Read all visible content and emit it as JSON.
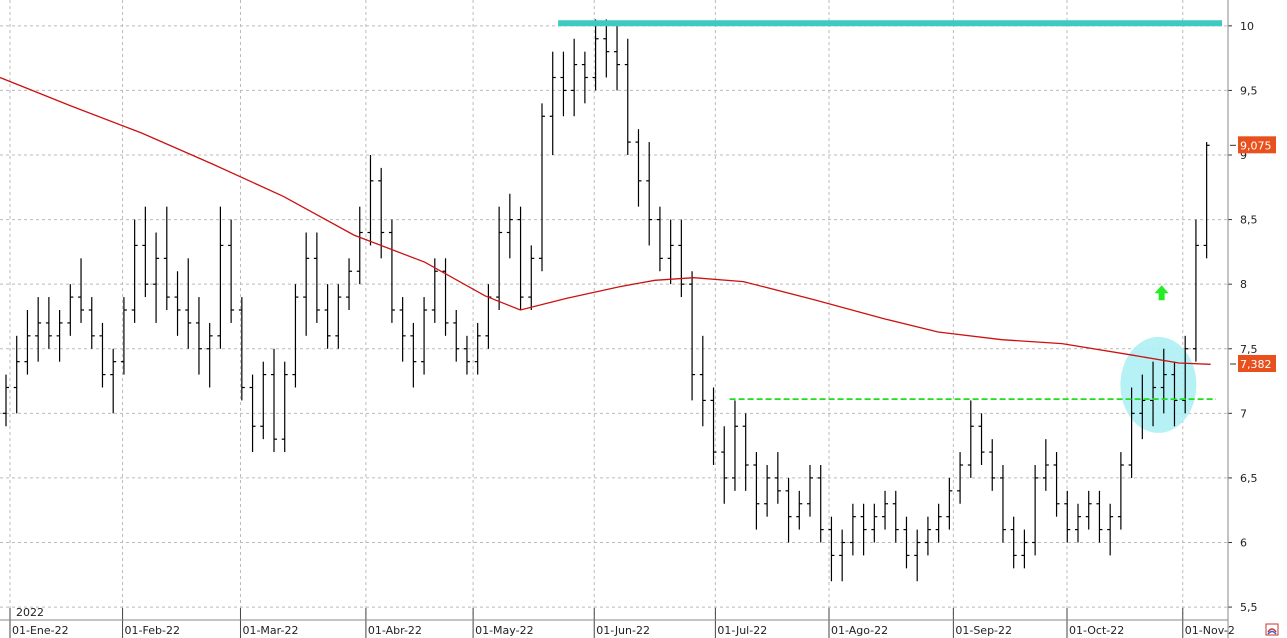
{
  "chart_data": {
    "type": "ohlc-bar",
    "year_label": "2022",
    "x_ticks": [
      "01-Ene-22",
      "01-Feb-22",
      "01-Mar-22",
      "01-Abr-22",
      "01-May-22",
      "01-Jun-22",
      "01-Jul-22",
      "01-Ago-22",
      "01-Sep-22",
      "01-Oct-22",
      "01-Nov-2"
    ],
    "y_ticks": [
      "5,5",
      "6",
      "6,5",
      "7",
      "7,5",
      "8",
      "8,5",
      "9",
      "9,5",
      "10"
    ],
    "y_tick_values": [
      5.5,
      6,
      6.5,
      7,
      7.5,
      8,
      8.5,
      9,
      9.5,
      10
    ],
    "ylim": [
      5.4,
      10.2
    ],
    "grid": true,
    "colors": {
      "bars": "#000000",
      "moving_average": "#cc1111",
      "resistance_line": "#3ec9c1",
      "support_line": "#22dd22",
      "price_tag": "#e8501e",
      "highlight_circle": "#aef0f5",
      "arrow": "#22ee22",
      "grid": "#bbbbbb"
    },
    "last_price": "9,075",
    "moving_average_value": "7,382",
    "resistance_level": 10.02,
    "support_level": 7.11,
    "moving_average": [
      [
        0,
        9.6
      ],
      [
        20,
        9.38
      ],
      [
        40,
        9.17
      ],
      [
        60,
        8.93
      ],
      [
        80,
        8.68
      ],
      [
        100,
        8.38
      ],
      [
        120,
        8.17
      ],
      [
        137,
        7.91
      ],
      [
        147,
        7.8
      ],
      [
        160,
        7.89
      ],
      [
        175,
        7.98
      ],
      [
        185,
        8.03
      ],
      [
        196,
        8.05
      ],
      [
        210,
        8.02
      ],
      [
        230,
        7.88
      ],
      [
        250,
        7.73
      ],
      [
        265,
        7.63
      ],
      [
        283,
        7.57
      ],
      [
        300,
        7.54
      ],
      [
        320,
        7.45
      ],
      [
        333,
        7.39
      ],
      [
        342,
        7.38
      ]
    ],
    "ohlc": [
      [
        0,
        7.0,
        7.3,
        6.9,
        7.2
      ],
      [
        1,
        7.2,
        7.6,
        7.0,
        7.4
      ],
      [
        2,
        7.4,
        7.8,
        7.3,
        7.6
      ],
      [
        3,
        7.6,
        7.9,
        7.4,
        7.7
      ],
      [
        4,
        7.7,
        7.9,
        7.5,
        7.6
      ],
      [
        5,
        7.6,
        7.8,
        7.4,
        7.7
      ],
      [
        6,
        7.7,
        8.0,
        7.6,
        7.9
      ],
      [
        7,
        7.9,
        8.2,
        7.7,
        7.8
      ],
      [
        8,
        7.8,
        7.9,
        7.5,
        7.6
      ],
      [
        9,
        7.6,
        7.7,
        7.2,
        7.3
      ],
      [
        10,
        7.3,
        7.5,
        7.0,
        7.4
      ],
      [
        11,
        7.4,
        7.9,
        7.3,
        7.8
      ],
      [
        12,
        7.8,
        8.5,
        7.7,
        8.3
      ],
      [
        13,
        8.3,
        8.6,
        7.9,
        8.0
      ],
      [
        14,
        8.0,
        8.4,
        7.7,
        8.2
      ],
      [
        15,
        8.2,
        8.6,
        7.8,
        7.9
      ],
      [
        16,
        7.9,
        8.1,
        7.6,
        7.8
      ],
      [
        17,
        7.8,
        8.2,
        7.5,
        7.7
      ],
      [
        18,
        7.7,
        7.9,
        7.3,
        7.5
      ],
      [
        19,
        7.5,
        7.7,
        7.2,
        7.6
      ],
      [
        20,
        7.6,
        8.6,
        7.5,
        8.3
      ],
      [
        21,
        8.3,
        8.5,
        7.7,
        7.8
      ],
      [
        22,
        7.8,
        7.9,
        7.1,
        7.2
      ],
      [
        23,
        7.2,
        7.3,
        6.7,
        6.9
      ],
      [
        24,
        6.9,
        7.4,
        6.8,
        7.3
      ],
      [
        25,
        7.3,
        7.5,
        6.7,
        6.8
      ],
      [
        26,
        6.8,
        7.4,
        6.7,
        7.3
      ],
      [
        27,
        7.3,
        8.0,
        7.2,
        7.9
      ],
      [
        28,
        7.9,
        8.4,
        7.6,
        8.2
      ],
      [
        29,
        8.2,
        8.4,
        7.7,
        7.8
      ],
      [
        30,
        7.8,
        8.0,
        7.5,
        7.6
      ],
      [
        31,
        7.6,
        8.0,
        7.5,
        7.9
      ],
      [
        32,
        7.9,
        8.2,
        7.8,
        8.1
      ],
      [
        33,
        8.1,
        8.6,
        8.0,
        8.4
      ],
      [
        34,
        8.4,
        9.0,
        8.3,
        8.8
      ],
      [
        35,
        8.8,
        8.9,
        8.2,
        8.4
      ],
      [
        36,
        8.4,
        8.5,
        7.7,
        7.8
      ],
      [
        37,
        7.8,
        7.9,
        7.4,
        7.6
      ],
      [
        38,
        7.6,
        7.7,
        7.2,
        7.4
      ],
      [
        39,
        7.4,
        7.9,
        7.3,
        7.8
      ],
      [
        40,
        7.8,
        8.2,
        7.7,
        8.1
      ],
      [
        41,
        8.1,
        8.2,
        7.6,
        7.7
      ],
      [
        42,
        7.7,
        7.8,
        7.4,
        7.5
      ],
      [
        43,
        7.5,
        7.6,
        7.3,
        7.4
      ],
      [
        44,
        7.4,
        7.7,
        7.3,
        7.6
      ],
      [
        45,
        7.6,
        8.0,
        7.5,
        7.9
      ],
      [
        46,
        7.9,
        8.6,
        7.8,
        8.4
      ],
      [
        47,
        8.4,
        8.7,
        8.2,
        8.5
      ],
      [
        48,
        8.5,
        8.6,
        7.8,
        7.9
      ],
      [
        49,
        7.9,
        8.3,
        7.8,
        8.2
      ],
      [
        50,
        8.2,
        9.4,
        8.1,
        9.3
      ],
      [
        51,
        9.3,
        9.8,
        9.0,
        9.6
      ],
      [
        52,
        9.6,
        9.8,
        9.3,
        9.5
      ],
      [
        53,
        9.5,
        9.9,
        9.3,
        9.7
      ],
      [
        54,
        9.7,
        9.8,
        9.4,
        9.6
      ],
      [
        55,
        9.6,
        10.05,
        9.5,
        9.9
      ],
      [
        56,
        9.9,
        10.05,
        9.6,
        9.8
      ],
      [
        57,
        9.8,
        10.0,
        9.5,
        9.7
      ],
      [
        58,
        9.7,
        9.9,
        9.0,
        9.1
      ],
      [
        59,
        9.1,
        9.2,
        8.6,
        8.8
      ],
      [
        60,
        8.8,
        9.1,
        8.3,
        8.5
      ],
      [
        61,
        8.5,
        8.6,
        8.1,
        8.2
      ],
      [
        62,
        8.2,
        8.5,
        8.0,
        8.3
      ],
      [
        63,
        8.3,
        8.5,
        7.9,
        8.0
      ],
      [
        64,
        8.0,
        8.1,
        7.1,
        7.3
      ],
      [
        65,
        7.3,
        7.6,
        6.9,
        7.1
      ],
      [
        66,
        7.1,
        7.2,
        6.6,
        6.7
      ],
      [
        67,
        6.7,
        6.9,
        6.3,
        6.5
      ],
      [
        68,
        6.5,
        7.1,
        6.4,
        6.9
      ],
      [
        69,
        6.9,
        7.0,
        6.4,
        6.6
      ],
      [
        70,
        6.6,
        6.7,
        6.1,
        6.3
      ],
      [
        71,
        6.3,
        6.6,
        6.2,
        6.5
      ],
      [
        72,
        6.5,
        6.7,
        6.3,
        6.4
      ],
      [
        73,
        6.4,
        6.5,
        6.0,
        6.2
      ],
      [
        74,
        6.2,
        6.4,
        6.1,
        6.3
      ],
      [
        75,
        6.3,
        6.6,
        6.2,
        6.5
      ],
      [
        76,
        6.5,
        6.6,
        6.0,
        6.1
      ],
      [
        77,
        6.1,
        6.2,
        5.7,
        5.9
      ],
      [
        78,
        5.9,
        6.1,
        5.7,
        6.0
      ],
      [
        79,
        6.0,
        6.3,
        5.9,
        6.2
      ],
      [
        80,
        6.2,
        6.3,
        5.9,
        6.1
      ],
      [
        81,
        6.1,
        6.3,
        6.0,
        6.2
      ],
      [
        82,
        6.2,
        6.4,
        6.1,
        6.3
      ],
      [
        83,
        6.3,
        6.4,
        6.0,
        6.1
      ],
      [
        84,
        6.1,
        6.2,
        5.8,
        5.9
      ],
      [
        85,
        5.9,
        6.1,
        5.7,
        6.0
      ],
      [
        86,
        6.0,
        6.2,
        5.9,
        6.1
      ],
      [
        87,
        6.1,
        6.3,
        6.0,
        6.2
      ],
      [
        88,
        6.2,
        6.5,
        6.1,
        6.4
      ],
      [
        89,
        6.4,
        6.7,
        6.3,
        6.6
      ],
      [
        90,
        6.6,
        7.1,
        6.5,
        6.9
      ],
      [
        91,
        6.9,
        7.0,
        6.6,
        6.7
      ],
      [
        92,
        6.7,
        6.8,
        6.4,
        6.5
      ],
      [
        93,
        6.5,
        6.6,
        6.0,
        6.1
      ],
      [
        94,
        6.1,
        6.2,
        5.8,
        5.9
      ],
      [
        95,
        5.9,
        6.1,
        5.8,
        6.0
      ],
      [
        96,
        6.0,
        6.6,
        5.9,
        6.5
      ],
      [
        97,
        6.5,
        6.8,
        6.4,
        6.6
      ],
      [
        98,
        6.6,
        6.7,
        6.2,
        6.3
      ],
      [
        99,
        6.3,
        6.4,
        6.0,
        6.1
      ],
      [
        100,
        6.1,
        6.3,
        6.0,
        6.2
      ],
      [
        101,
        6.2,
        6.4,
        6.1,
        6.3
      ],
      [
        102,
        6.3,
        6.4,
        6.0,
        6.1
      ],
      [
        103,
        6.1,
        6.3,
        5.9,
        6.2
      ],
      [
        104,
        6.2,
        6.7,
        6.1,
        6.6
      ],
      [
        105,
        6.6,
        7.2,
        6.5,
        7.0
      ],
      [
        106,
        7.0,
        7.3,
        6.8,
        7.1
      ],
      [
        107,
        7.1,
        7.4,
        6.9,
        7.2
      ],
      [
        108,
        7.2,
        7.5,
        7.0,
        7.3
      ],
      [
        109,
        7.3,
        7.4,
        6.9,
        7.1
      ],
      [
        110,
        7.1,
        7.6,
        7.0,
        7.5
      ],
      [
        111,
        7.5,
        8.5,
        7.4,
        8.3
      ],
      [
        112,
        8.3,
        9.1,
        8.2,
        9.075
      ]
    ]
  }
}
